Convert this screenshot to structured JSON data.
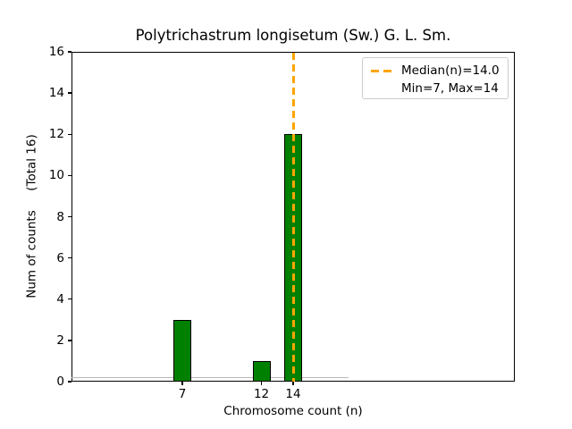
{
  "chart_data": {
    "type": "bar",
    "title": "Polytrichastrum longisetum (Sw.) G. L. Sm.",
    "xlabel": "Chromosome count (n)",
    "ylabel": "Num of counts     (Total 16)",
    "categories": [
      "7",
      "12",
      "14"
    ],
    "x": [
      7,
      12,
      14
    ],
    "values": [
      3,
      1,
      12
    ],
    "xlim": [
      0,
      28
    ],
    "ylim": [
      0,
      16
    ],
    "xticks": [
      7,
      12,
      14
    ],
    "yticks": [
      0,
      2,
      4,
      6,
      8,
      10,
      12,
      14,
      16
    ],
    "grid": false,
    "bar_color": "#008000",
    "bar_edge_color": "#000000",
    "median_line": {
      "x": 14,
      "color": "#ffa500",
      "style": "dashed"
    },
    "stats": {
      "median": 14.0,
      "min": 7,
      "max": 14,
      "total": 16
    },
    "zero_count_baseline": {
      "from_x": 0,
      "to_x": 17.5,
      "color": "#b8b8b8"
    },
    "legend": {
      "position": "upper right",
      "entries": [
        {
          "label": "Median(n)=14.0",
          "marker": "orange-dashed-line"
        },
        {
          "label": "Min=7, Max=14",
          "marker": "none"
        }
      ]
    }
  }
}
